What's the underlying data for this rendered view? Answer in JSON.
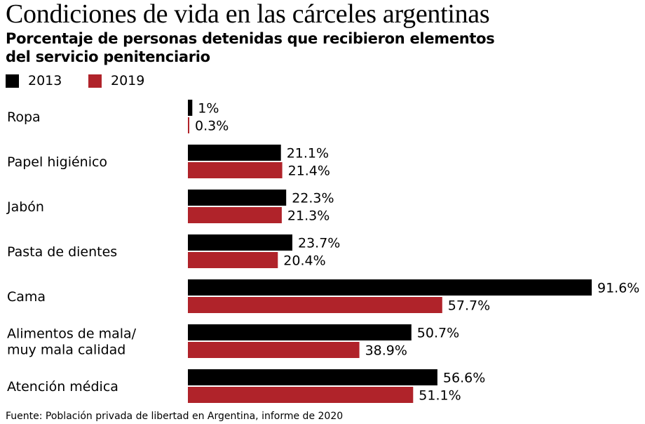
{
  "title": "Condiciones de vida en las cárceles argentinas",
  "subtitle_lines": [
    "Porcentaje de personas detenidas que recibieron elementos",
    "del servicio penitenciario"
  ],
  "source": "Fuente: Población privada de libertad en Argentina, informe de 2020",
  "legend": [
    {
      "label": "2013",
      "color": "#000000"
    },
    {
      "label": "2019",
      "color": "#b0232a"
    }
  ],
  "chart_data": {
    "type": "bar",
    "orientation": "horizontal",
    "categories": [
      [
        "Ropa"
      ],
      [
        "Papel higiénico"
      ],
      [
        "Jabón"
      ],
      [
        "Pasta de dientes"
      ],
      [
        "Cama"
      ],
      [
        "Alimentos de mala/",
        "muy mala calidad"
      ],
      [
        "Atención médica"
      ]
    ],
    "series": [
      {
        "name": "2013",
        "color": "#000000",
        "values": [
          1,
          21.1,
          22.3,
          23.7,
          91.6,
          50.7,
          56.6
        ],
        "labels": [
          "1%",
          "21.1%",
          "22.3%",
          "23.7%",
          "91.6%",
          "50.7%",
          "56.6%"
        ]
      },
      {
        "name": "2019",
        "color": "#b0232a",
        "values": [
          0.3,
          21.4,
          21.3,
          20.4,
          57.7,
          38.9,
          51.1
        ],
        "labels": [
          "0.3%",
          "21.4%",
          "21.3%",
          "20.4%",
          "57.7%",
          "38.9%",
          "51.1%"
        ]
      }
    ],
    "xlim": [
      0,
      91.6
    ],
    "grid": false,
    "axis_visible": false,
    "legend_position": "top-left"
  }
}
